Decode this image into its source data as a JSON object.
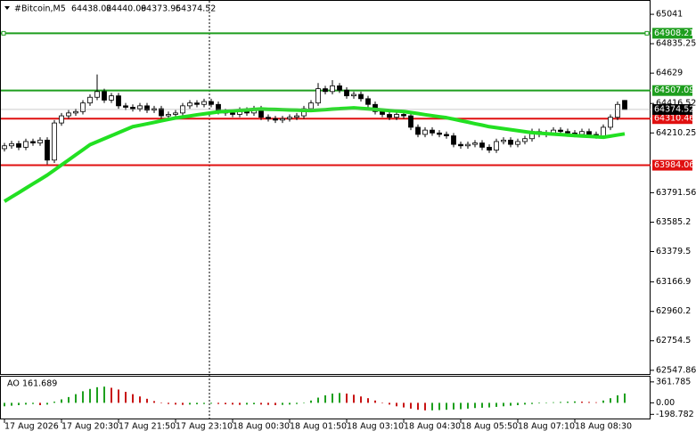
{
  "chart_data": [
    {
      "type": "candlestick",
      "title": "#Bitcoin,M5",
      "quote": [
        64438.02,
        64440.09,
        64373.95,
        64374.52
      ],
      "categories": [
        "17 Aug 2026",
        null,
        null,
        null,
        null,
        null,
        null,
        null,
        "17 Aug 20:30",
        null,
        null,
        null,
        null,
        null,
        null,
        null,
        "17 Aug 21:50",
        null,
        null,
        null,
        null,
        null,
        null,
        null,
        "17 Aug 23:10",
        null,
        null,
        null,
        null,
        null,
        null,
        null,
        "18 Aug 00:30",
        null,
        null,
        null,
        null,
        null,
        null,
        null,
        "18 Aug 01:50",
        null,
        null,
        null,
        null,
        null,
        null,
        null,
        "18 Aug 03:10",
        null,
        null,
        null,
        null,
        null,
        null,
        null,
        "18 Aug 04:30",
        null,
        null,
        null,
        null,
        null,
        null,
        null,
        "18 Aug 05:50",
        null,
        null,
        null,
        null,
        null,
        null,
        null,
        "18 Aug 07:10",
        null,
        null,
        null,
        null,
        null,
        null,
        null,
        "18 Aug 08:30",
        null,
        null,
        null,
        null,
        null,
        null,
        null
      ],
      "open": [
        64100,
        64120,
        64135,
        64110,
        64150,
        64140,
        64160,
        64020,
        64280,
        64330,
        64350,
        64360,
        64420,
        64460,
        64500,
        64440,
        64470,
        64400,
        64390,
        64380,
        64400,
        64370,
        64380,
        64330,
        64340,
        64350,
        64400,
        64420,
        64410,
        64430,
        64410,
        64360,
        64350,
        64340,
        64370,
        64350,
        64380,
        64320,
        64310,
        64300,
        64310,
        64320,
        64330,
        64380,
        64420,
        64520,
        64500,
        64540,
        64510,
        64470,
        64480,
        64450,
        64410,
        64360,
        64340,
        64320,
        64340,
        64330,
        64250,
        64200,
        64230,
        64210,
        64200,
        64190,
        64130,
        64120,
        64130,
        64140,
        64110,
        64090,
        64150,
        64160,
        64130,
        64150,
        64170,
        64220,
        64200,
        64210,
        64230,
        64220,
        64210,
        64200,
        64220,
        64200,
        64190,
        64250,
        64320,
        64438.02
      ],
      "high": [
        64140,
        64155,
        64155,
        64170,
        64170,
        64180,
        64180,
        64300,
        64350,
        64370,
        64380,
        64440,
        64480,
        64620,
        64520,
        64490,
        64490,
        64420,
        64410,
        64420,
        64420,
        64400,
        64400,
        64360,
        64370,
        64420,
        64440,
        64440,
        64450,
        64450,
        64430,
        64380,
        64370,
        64390,
        64390,
        64400,
        64400,
        64340,
        64330,
        64330,
        64340,
        64350,
        64400,
        64440,
        64560,
        64540,
        64580,
        64560,
        64530,
        64500,
        64500,
        64470,
        64430,
        64380,
        64360,
        64360,
        64360,
        64350,
        64270,
        64250,
        64250,
        64230,
        64220,
        64210,
        64150,
        64150,
        64160,
        64160,
        64130,
        64170,
        64180,
        64180,
        64170,
        64190,
        64240,
        64240,
        64230,
        64250,
        64250,
        64240,
        64230,
        64240,
        64240,
        64220,
        64270,
        64340,
        64430,
        64440.09
      ],
      "low": [
        64080,
        64100,
        64090,
        64090,
        64120,
        64120,
        63990,
        64000,
        64260,
        64310,
        64330,
        64340,
        64400,
        64440,
        64420,
        64420,
        64380,
        64370,
        64360,
        64360,
        64350,
        64350,
        64310,
        64310,
        64320,
        64330,
        64380,
        64390,
        64390,
        64390,
        64340,
        64330,
        64320,
        64320,
        64330,
        64330,
        64300,
        64290,
        64280,
        64280,
        64290,
        64300,
        64310,
        64360,
        64400,
        64480,
        64480,
        64490,
        64450,
        64450,
        64430,
        64390,
        64340,
        64320,
        64300,
        64300,
        64310,
        64230,
        64180,
        64180,
        64190,
        64180,
        64170,
        64110,
        64100,
        64100,
        64110,
        64090,
        64070,
        64070,
        64130,
        64110,
        64110,
        64130,
        64150,
        64180,
        64180,
        64190,
        64200,
        64190,
        64180,
        64180,
        64180,
        64170,
        64170,
        64230,
        64300,
        64373.95
      ],
      "close": [
        64120,
        64135,
        64110,
        64150,
        64140,
        64160,
        64020,
        64280,
        64330,
        64350,
        64360,
        64420,
        64460,
        64500,
        64440,
        64470,
        64400,
        64390,
        64380,
        64400,
        64370,
        64380,
        64330,
        64340,
        64350,
        64400,
        64420,
        64410,
        64430,
        64410,
        64360,
        64350,
        64340,
        64370,
        64350,
        64380,
        64320,
        64310,
        64300,
        64310,
        64320,
        64330,
        64380,
        64420,
        64520,
        64500,
        64540,
        64510,
        64470,
        64480,
        64450,
        64410,
        64360,
        64340,
        64320,
        64340,
        64330,
        64250,
        64200,
        64230,
        64210,
        64200,
        64190,
        64130,
        64120,
        64130,
        64140,
        64110,
        64090,
        64150,
        64160,
        64130,
        64150,
        64170,
        64220,
        64200,
        64210,
        64230,
        64220,
        64210,
        64200,
        64220,
        64200,
        64190,
        64250,
        64320,
        64410,
        64374.52
      ],
      "ma": {
        "color": "#22e022",
        "values": [
          63731,
          63762,
          63792,
          63823,
          63854,
          63884,
          63915,
          63950,
          63986,
          64021,
          64057,
          64092,
          64128,
          64149,
          64170,
          64191,
          64212,
          64233,
          64254,
          64264,
          64274,
          64284,
          64295,
          64305,
          64315,
          64322,
          64329,
          64337,
          64344,
          64351,
          64358,
          64361,
          64365,
          64368,
          64371,
          64375,
          64378,
          64376,
          64375,
          64373,
          64371,
          64370,
          64368,
          64367,
          64370,
          64373,
          64377,
          64380,
          64383,
          64386,
          64382,
          64379,
          64375,
          64371,
          64367,
          64364,
          64360,
          64353,
          64346,
          64338,
          64331,
          64324,
          64317,
          64307,
          64296,
          64286,
          64275,
          64265,
          64254,
          64247,
          64240,
          64233,
          64226,
          64219,
          64212,
          64209,
          64205,
          64202,
          64199,
          64195,
          64192,
          64189,
          64186,
          64183,
          64180,
          64188,
          64196,
          64204
        ]
      },
      "levels": [
        {
          "value": 64908.21,
          "color": "#1e9e1e"
        },
        {
          "value": 64507.09,
          "color": "#1e9e1e"
        },
        {
          "value": 64310.46,
          "color": "#e01010"
        },
        {
          "value": 63984.06,
          "color": "#e01010"
        }
      ],
      "ylim": [
        62522,
        65135
      ],
      "yticks": [
        65041,
        64835.25,
        64629,
        64416.52,
        64210.25,
        63791.56,
        63585.2,
        63379.5,
        63166.9,
        62960.2,
        62754.5,
        62547.86
      ]
    },
    {
      "type": "bar",
      "title": "AO",
      "values": [
        -60,
        -50,
        -40,
        -30,
        -20,
        -40,
        -30,
        20,
        60,
        100,
        150,
        200,
        240,
        270,
        280,
        260,
        230,
        190,
        150,
        110,
        70,
        30,
        0,
        -20,
        -30,
        -35,
        -30,
        -25,
        -20,
        -15,
        -20,
        -25,
        -30,
        -35,
        -30,
        -25,
        -30,
        -35,
        -40,
        -35,
        -30,
        -20,
        0,
        40,
        90,
        130,
        160,
        170,
        160,
        140,
        110,
        80,
        40,
        0,
        -30,
        -60,
        -80,
        -100,
        -120,
        -130,
        -130,
        -125,
        -120,
        -115,
        -110,
        -100,
        -90,
        -85,
        -80,
        -70,
        -60,
        -50,
        -40,
        -30,
        -20,
        -10,
        0,
        10,
        15,
        20,
        25,
        20,
        15,
        10,
        40,
        80,
        130,
        161.689
      ],
      "up_color": "#1ea01e",
      "down_color": "#c81414",
      "ylim": [
        -271,
        452
      ],
      "yticks": [
        361.785,
        {
          "value": 0,
          "label": "0.00"
        },
        -198.782
      ]
    }
  ]
}
